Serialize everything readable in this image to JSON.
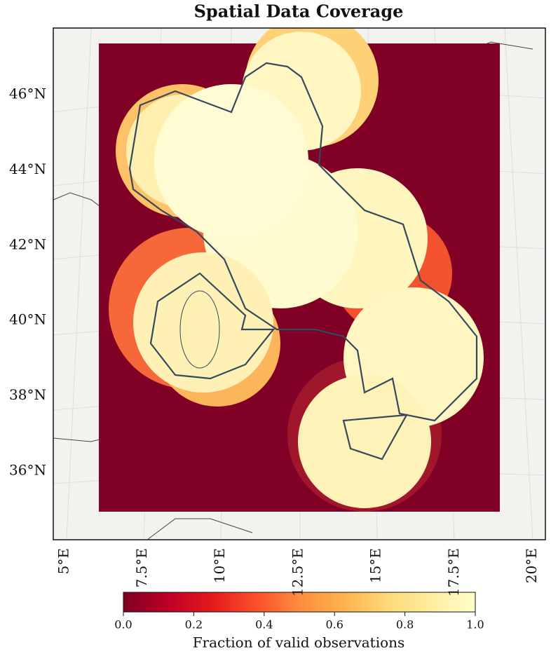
{
  "title": "Spatial Data Coverage",
  "lat_labels": [
    {
      "value": 46,
      "label": "46°N"
    },
    {
      "value": 44,
      "label": "44°N"
    },
    {
      "value": 42,
      "label": "42°N"
    },
    {
      "value": 40,
      "label": "40°N"
    },
    {
      "value": 38,
      "label": "38°N"
    },
    {
      "value": 36,
      "label": "36°N"
    }
  ],
  "lon_labels": [
    {
      "value": 5,
      "label": "5°E"
    },
    {
      "value": 7.5,
      "label": "7.5°E"
    },
    {
      "value": 10,
      "label": "10°E"
    },
    {
      "value": 12.5,
      "label": "12.5°E"
    },
    {
      "value": 15,
      "label": "15°E"
    },
    {
      "value": 17.5,
      "label": "17.5°E"
    },
    {
      "value": 20,
      "label": "20°E"
    }
  ],
  "colorbar": {
    "label": "Fraction of valid observations",
    "lim": [
      0,
      1
    ],
    "ticks": [
      {
        "value": 0,
        "label": "0.0"
      },
      0.2,
      0.4,
      0.6,
      0.8,
      {
        "value": 1,
        "label": "1.0"
      }
    ],
    "colors": [
      "#800026",
      "#bd0026",
      "#e31a1c",
      "#fc4e2a",
      "#fd8d3c",
      "#feb24c",
      "#fed976",
      "#ffeda0",
      "#ffffcc"
    ]
  }
}
